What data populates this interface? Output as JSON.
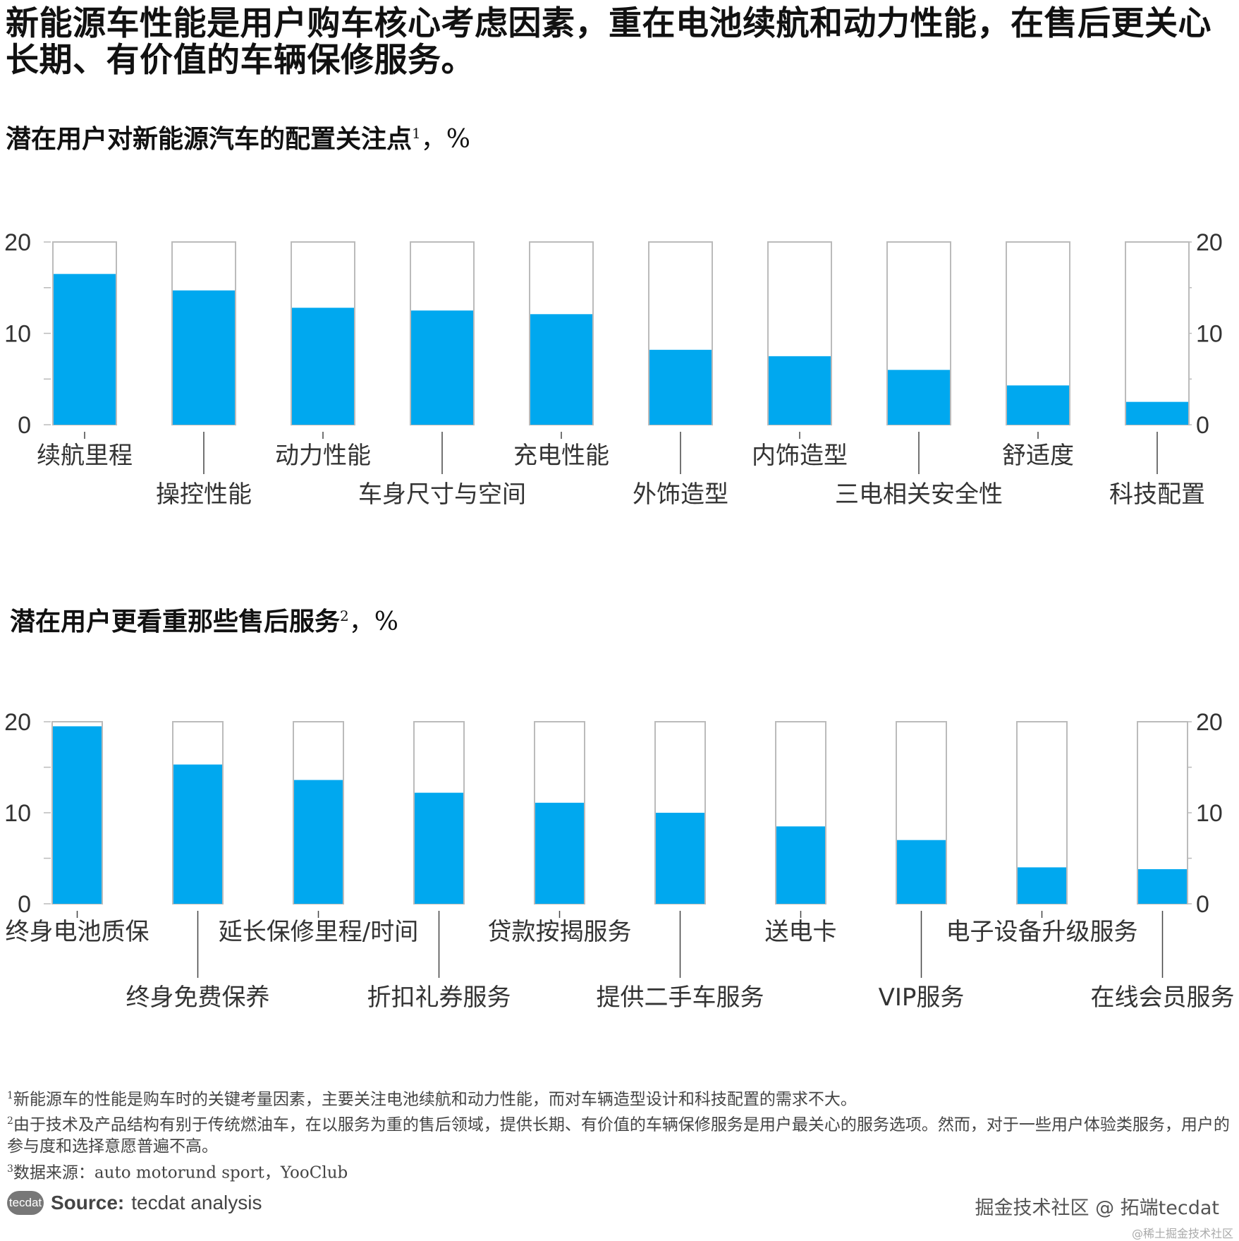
{
  "title": "新能源车性能是用户购车核心考虑因素，重在电池续航和动力性能，在售后更关心长期、有价值的车辆保修服务。",
  "colors": {
    "bar": "#00A8EF",
    "frame": "#BBBBBB",
    "text": "#333333"
  },
  "chart_data": [
    {
      "type": "bar",
      "title": "潜在用户对新能源汽车的配置关注点",
      "title_sup": "1",
      "title_suffix": "，%",
      "categories": [
        "续航里程",
        "操控性能",
        "动力性能",
        "车身尺寸与空间",
        "充电性能",
        "外饰造型",
        "内饰造型",
        "三电相关安全性",
        "舒适度",
        "科技配置"
      ],
      "values": [
        16.5,
        14.7,
        12.8,
        12.5,
        12.1,
        8.2,
        7.5,
        6.0,
        4.3,
        2.5
      ],
      "ylim": [
        0,
        20
      ],
      "yticks": [
        "0",
        "10",
        "20"
      ],
      "xlabel": "",
      "ylabel": "%",
      "grid": false
    },
    {
      "type": "bar",
      "title": "潜在用户更看重那些售后服务",
      "title_sup": "2",
      "title_suffix": "，%",
      "categories": [
        "终身电池质保",
        "终身免费保养",
        "延长保修里程/时间",
        "折扣礼券服务",
        "贷款按揭服务",
        "提供二手车服务",
        "送电卡",
        "VIP服务",
        "电子设备升级服务",
        "在线会员服务"
      ],
      "values": [
        19.5,
        15.3,
        13.6,
        12.2,
        11.1,
        10.0,
        8.5,
        7.0,
        4.0,
        3.8
      ],
      "ylim": [
        0,
        20
      ],
      "yticks": [
        "0",
        "10",
        "20"
      ],
      "xlabel": "",
      "ylabel": "%",
      "grid": false
    }
  ],
  "footnotes": {
    "n1": "新能源车的性能是购车时的关键考量因素，主要关注电池续航和动力性能，而对车辆造型设计和科技配置的需求不大。",
    "n2": "由于技术及产品结构有别于传统燃油车，在以服务为重的售后领域，提供长期、有价值的车辆保修服务是用户最关心的服务选项。然而，对于一些用户体验类服务，用户的参与度和选择意愿普遍不高。",
    "n3": "数据来源：auto motorund sport，YooClub",
    "m1": "1",
    "m2": "2",
    "m3": "3"
  },
  "source": {
    "logo": "tecdat",
    "label": "Source:",
    "text": "tecdat analysis"
  },
  "watermark": "掘金技术社区 @ 拓端tecdat",
  "watermark2": "@稀土掘金技术社区"
}
